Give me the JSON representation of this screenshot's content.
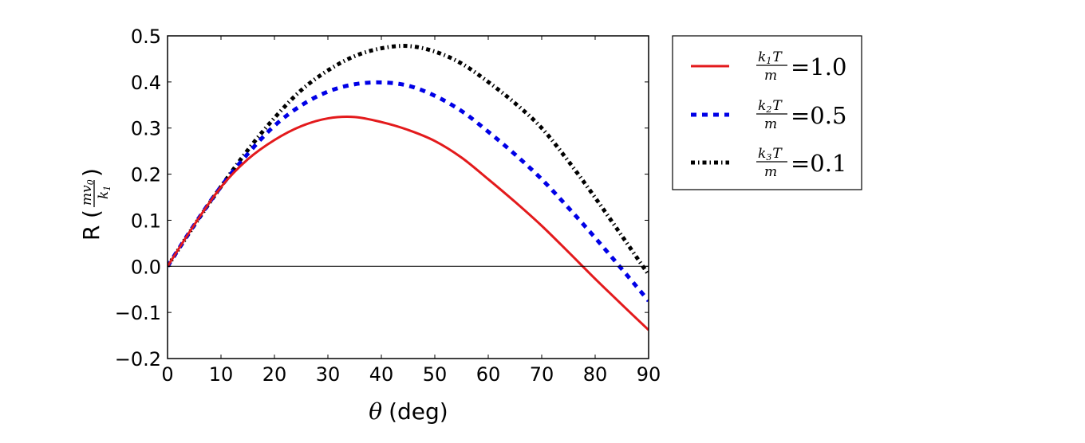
{
  "chart_data": {
    "type": "line",
    "title": "",
    "xlabel_symbol": "θ",
    "xlabel_unit": "(deg)",
    "ylabel": "R",
    "ylabel_unit": {
      "numerator": "mv",
      "numerator_sub": "0",
      "denominator": "k",
      "denominator_sub": "1"
    },
    "xlim": [
      0,
      90
    ],
    "ylim": [
      -0.2,
      0.5
    ],
    "xticks": [
      0,
      10,
      20,
      30,
      40,
      50,
      60,
      70,
      80,
      90
    ],
    "xtick_labels": [
      "0",
      "10",
      "20",
      "30",
      "40",
      "50",
      "60",
      "70",
      "80",
      "90"
    ],
    "yticks": [
      -0.2,
      -0.1,
      0.0,
      0.1,
      0.2,
      0.3,
      0.4,
      0.5
    ],
    "ytick_labels": [
      "−0.2",
      "−0.1",
      "0.0",
      "0.1",
      "0.2",
      "0.3",
      "0.4",
      "0.5"
    ],
    "grid": false,
    "zero_line": true,
    "legend_position": "outside-right-top",
    "x": [
      0,
      5,
      10,
      15,
      20,
      25,
      30,
      35,
      40,
      45,
      50,
      55,
      60,
      65,
      70,
      75,
      80,
      85,
      90
    ],
    "series": [
      {
        "name": "k1T/m = 1.0",
        "legend": {
          "k_sub": "1",
          "value": "1.0"
        },
        "color": "#e31a1c",
        "style": "solid",
        "values": [
          0,
          0.09,
          0.172,
          0.232,
          0.274,
          0.304,
          0.321,
          0.324,
          0.313,
          0.296,
          0.272,
          0.236,
          0.189,
          0.14,
          0.088,
          0.031,
          -0.027,
          -0.083,
          -0.138
        ]
      },
      {
        "name": "k2T/m = 0.5",
        "legend": {
          "k_sub": "2",
          "value": "0.5"
        },
        "color": "#0000e6",
        "style": "dashed",
        "values": [
          0,
          0.09,
          0.173,
          0.244,
          0.305,
          0.349,
          0.379,
          0.395,
          0.399,
          0.392,
          0.37,
          0.337,
          0.292,
          0.243,
          0.189,
          0.127,
          0.062,
          -0.006,
          -0.075
        ]
      },
      {
        "name": "k3T/m = 0.1",
        "legend": {
          "k_sub": "3",
          "value": "0.1"
        },
        "color": "#000000",
        "style": "dashdot",
        "values": [
          0,
          0.089,
          0.173,
          0.252,
          0.322,
          0.382,
          0.425,
          0.456,
          0.473,
          0.478,
          0.466,
          0.44,
          0.4,
          0.354,
          0.3,
          0.228,
          0.149,
          0.066,
          -0.018
        ]
      }
    ]
  }
}
